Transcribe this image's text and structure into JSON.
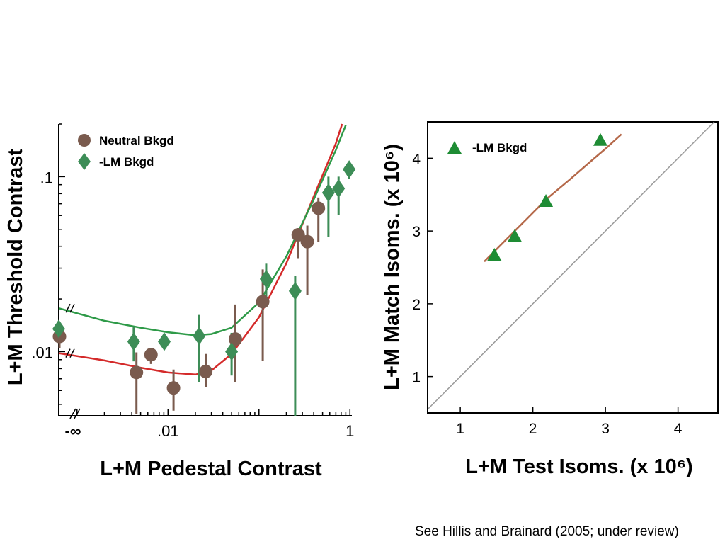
{
  "caption": "See Hillis and Brainard (2005; under review)",
  "colors": {
    "neutral_marker": "#7a5b4e",
    "lm_marker": "#3d8d57",
    "neutral_curve": "#d42a2a",
    "lm_curve": "#2e9a48",
    "match_marker": "#1e8c34",
    "match_curve": "#b5694a",
    "identity_line": "#999999",
    "axis": "#000000"
  },
  "chart_data": [
    {
      "type": "scatter",
      "title": "",
      "xlabel": "L+M Pedestal Contrast",
      "ylabel": "L+M Threshold Contrast",
      "xscale": "log",
      "yscale": "log",
      "xlim": [
        0.00063,
        1.05
      ],
      "ylim": [
        0.0043,
        0.2
      ],
      "x_ticks": [
        {
          "value": 0.00063,
          "label": "-∞"
        },
        {
          "value": 0.01,
          "label": ".01"
        },
        {
          "value": 1,
          "label": "1"
        }
      ],
      "y_ticks": [
        {
          "value": 0.01,
          "label": ".01"
        },
        {
          "value": 0.1,
          "label": ".1"
        }
      ],
      "axis_breaks": true,
      "legend_position": "top-left",
      "series": [
        {
          "name": "Neutral Bkgd",
          "marker": "circle",
          "color": "#7a5b4e",
          "points": [
            {
              "x": 0.00063,
              "y": 0.0122,
              "ylo": 0.0105,
              "yhi": 0.0128
            },
            {
              "x": 0.0045,
              "y": 0.0076,
              "ylo": 0.0044,
              "yhi": 0.0099
            },
            {
              "x": 0.0065,
              "y": 0.0096,
              "ylo": 0.0085,
              "yhi": 0.0104
            },
            {
              "x": 0.0115,
              "y": 0.0062,
              "ylo": 0.0046,
              "yhi": 0.0079
            },
            {
              "x": 0.026,
              "y": 0.0077,
              "ylo": 0.0063,
              "yhi": 0.0097
            },
            {
              "x": 0.055,
              "y": 0.0118,
              "ylo": 0.0067,
              "yhi": 0.0186
            },
            {
              "x": 0.11,
              "y": 0.0193,
              "ylo": 0.0089,
              "yhi": 0.0295
            },
            {
              "x": 0.27,
              "y": 0.0465,
              "ylo": 0.0342,
              "yhi": 0.0465
            },
            {
              "x": 0.34,
              "y": 0.0425,
              "ylo": 0.021,
              "yhi": 0.0525
            },
            {
              "x": 0.45,
              "y": 0.066,
              "ylo": 0.0425,
              "yhi": 0.076
            }
          ]
        },
        {
          "name": "-LM Bkgd",
          "marker": "diamond",
          "color": "#3d8d57",
          "points": [
            {
              "x": 0.00063,
              "y": 0.0135,
              "ylo": 0.0117,
              "yhi": 0.0146
            },
            {
              "x": 0.0042,
              "y": 0.0114,
              "ylo": 0.0088,
              "yhi": 0.0139
            },
            {
              "x": 0.0091,
              "y": 0.0114,
              "ylo": 0.0104,
              "yhi": 0.0127
            },
            {
              "x": 0.022,
              "y": 0.0123,
              "ylo": 0.0067,
              "yhi": 0.0162
            },
            {
              "x": 0.05,
              "y": 0.01,
              "ylo": 0.0073,
              "yhi": 0.0128
            },
            {
              "x": 0.12,
              "y": 0.026,
              "ylo": 0.0181,
              "yhi": 0.0318
            },
            {
              "x": 0.25,
              "y": 0.0222,
              "ylo": 0.0043,
              "yhi": 0.0272
            },
            {
              "x": 0.58,
              "y": 0.081,
              "ylo": 0.0451,
              "yhi": 0.1
            },
            {
              "x": 0.75,
              "y": 0.0855,
              "ylo": 0.0601,
              "yhi": 0.1
            },
            {
              "x": 0.98,
              "y": 0.11,
              "ylo": 0.097,
              "yhi": 0.12
            }
          ]
        }
      ],
      "fit_curves": [
        {
          "series": "Neutral Bkgd",
          "color": "#d42a2a",
          "points": [
            [
              0.00063,
              0.0098
            ],
            [
              0.002,
              0.0089
            ],
            [
              0.005,
              0.0081
            ],
            [
              0.01,
              0.0076
            ],
            [
              0.02,
              0.0074
            ],
            [
              0.03,
              0.0078
            ],
            [
              0.05,
              0.0097
            ],
            [
              0.1,
              0.0157
            ],
            [
              0.2,
              0.032
            ],
            [
              0.4,
              0.077
            ],
            [
              0.7,
              0.155
            ],
            [
              0.82,
              0.2
            ]
          ]
        },
        {
          "series": "-LM Bkgd",
          "color": "#2e9a48",
          "points": [
            [
              0.00063,
              0.0177
            ],
            [
              0.002,
              0.015
            ],
            [
              0.005,
              0.0137
            ],
            [
              0.01,
              0.0129
            ],
            [
              0.02,
              0.0124
            ],
            [
              0.03,
              0.0126
            ],
            [
              0.05,
              0.0137
            ],
            [
              0.1,
              0.0191
            ],
            [
              0.2,
              0.035
            ],
            [
              0.4,
              0.074
            ],
            [
              0.7,
              0.142
            ],
            [
              0.9,
              0.197
            ]
          ]
        }
      ]
    },
    {
      "type": "scatter",
      "title": "",
      "xlabel": "L+M Test Isoms. (x 10⁶)",
      "ylabel": "L+M Match Isoms. (x 10⁶)",
      "xlim": [
        0.55,
        4.55
      ],
      "ylim": [
        0.5,
        4.5
      ],
      "x_ticks": [
        1,
        2,
        3,
        4
      ],
      "y_ticks": [
        1,
        2,
        3,
        4
      ],
      "identity_line": true,
      "legend_position": "top-left",
      "series": [
        {
          "name": "-LM Bkgd",
          "marker": "triangle",
          "color": "#1e8c34",
          "points": [
            {
              "x": 1.47,
              "y": 2.67
            },
            {
              "x": 1.75,
              "y": 2.93
            },
            {
              "x": 2.18,
              "y": 3.41
            },
            {
              "x": 2.93,
              "y": 4.25
            }
          ]
        }
      ],
      "fit_curves": [
        {
          "series": "-LM Bkgd",
          "color": "#b5694a",
          "points": [
            [
              1.33,
              2.58
            ],
            [
              1.6,
              2.85
            ],
            [
              1.9,
              3.15
            ],
            [
              2.2,
              3.45
            ],
            [
              2.5,
              3.7
            ],
            [
              2.8,
              3.96
            ],
            [
              3.0,
              4.13
            ],
            [
              3.22,
              4.33
            ]
          ]
        }
      ]
    }
  ]
}
